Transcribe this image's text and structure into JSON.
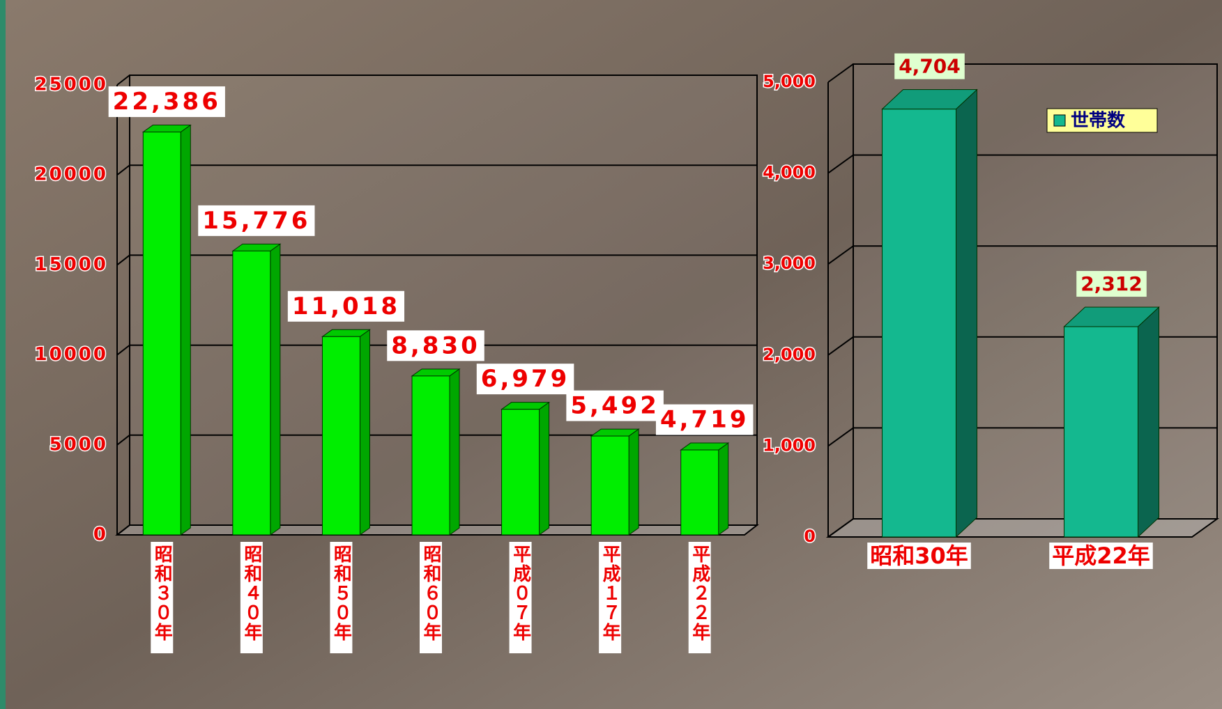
{
  "chart_data": [
    {
      "type": "bar",
      "categories": [
        "昭和３０年",
        "昭和４０年",
        "昭和５０年",
        "昭和６０年",
        "平成０７年",
        "平成１７年",
        "平成２２年"
      ],
      "values": [
        22386,
        15776,
        11018,
        8830,
        6979,
        5492,
        4719
      ],
      "value_labels": [
        "22,386",
        "15,776",
        "11,018",
        "8,830",
        "6,979",
        "5,492",
        "4,719"
      ],
      "color": "#00ee00",
      "ylim": [
        0,
        25000
      ],
      "yticks": [
        0,
        5000,
        10000,
        15000,
        20000,
        25000
      ],
      "grid": true
    },
    {
      "type": "bar",
      "categories": [
        "昭和30年",
        "平成22年"
      ],
      "series": [
        {
          "name": "世帯数",
          "color": "#14b88f",
          "values": [
            4704,
            2312
          ],
          "value_labels": [
            "4,704",
            "2,312"
          ]
        }
      ],
      "ylim": [
        0,
        5000
      ],
      "yticks": [
        0,
        {
          "value": 1000,
          "label": "1,000"
        },
        {
          "value": 2000,
          "label": "2,000"
        },
        {
          "value": 3000,
          "label": "3,000"
        },
        {
          "value": 4000,
          "label": "4,000"
        },
        {
          "value": 5000,
          "label": "5,000"
        }
      ],
      "grid": true,
      "legend": "top-right"
    }
  ]
}
